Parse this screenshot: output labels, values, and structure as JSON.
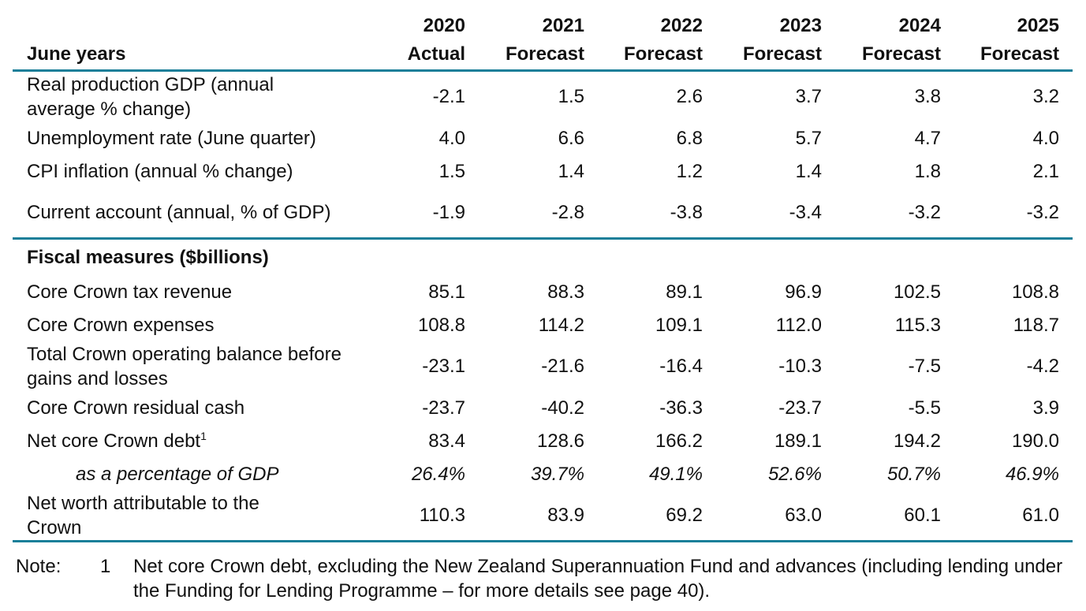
{
  "header": {
    "row_label": "June years",
    "columns": [
      {
        "year": "2020",
        "type": "Actual"
      },
      {
        "year": "2021",
        "type": "Forecast"
      },
      {
        "year": "2022",
        "type": "Forecast"
      },
      {
        "year": "2023",
        "type": "Forecast"
      },
      {
        "year": "2024",
        "type": "Forecast"
      },
      {
        "year": "2025",
        "type": "Forecast"
      }
    ]
  },
  "economic_rows": [
    {
      "label": "Real production GDP (annual average % change)",
      "values": [
        "-2.1",
        "1.5",
        "2.6",
        "3.7",
        "3.8",
        "3.2"
      ],
      "tall": true
    },
    {
      "label": "Unemployment rate (June quarter)",
      "values": [
        "4.0",
        "6.6",
        "6.8",
        "5.7",
        "4.7",
        "4.0"
      ]
    },
    {
      "label": "CPI inflation (annual % change)",
      "values": [
        "1.5",
        "1.4",
        "1.2",
        "1.4",
        "1.8",
        "2.1"
      ]
    },
    {
      "label": "Current account (annual, % of GDP)",
      "values": [
        "-1.9",
        "-2.8",
        "-3.8",
        "-3.4",
        "-3.2",
        "-3.2"
      ],
      "tall": true
    }
  ],
  "fiscal_section": "Fiscal measures ($billions)",
  "fiscal_rows": [
    {
      "label": "Core Crown tax revenue",
      "values": [
        "85.1",
        "88.3",
        "89.1",
        "96.9",
        "102.5",
        "108.8"
      ]
    },
    {
      "label": "Core Crown expenses",
      "values": [
        "108.8",
        "114.2",
        "109.1",
        "112.0",
        "115.3",
        "118.7"
      ]
    },
    {
      "label": "Total Crown operating balance before gains and losses",
      "values": [
        "-23.1",
        "-21.6",
        "-16.4",
        "-10.3",
        "-7.5",
        "-4.2"
      ],
      "tall": true
    },
    {
      "label": "Core Crown residual cash",
      "values": [
        "-23.7",
        "-40.2",
        "-36.3",
        "-23.7",
        "-5.5",
        "3.9"
      ]
    },
    {
      "label": "Net core Crown debt",
      "sup": "1",
      "values": [
        "83.4",
        "128.6",
        "166.2",
        "189.1",
        "194.2",
        "190.0"
      ]
    },
    {
      "label": "as a percentage of GDP",
      "values": [
        "26.4%",
        "39.7%",
        "49.1%",
        "52.6%",
        "50.7%",
        "46.9%"
      ],
      "italic": true
    },
    {
      "label": "Net worth attributable to the Crown",
      "values": [
        "110.3",
        "83.9",
        "69.2",
        "63.0",
        "60.1",
        "61.0"
      ],
      "tall": true,
      "narrow": true
    }
  ],
  "note": {
    "label": "Note:",
    "number": "1",
    "text": "Net core Crown debt, excluding the New Zealand Superannuation Fund and advances (including lending under the Funding for Lending Programme – for more details see page 40)."
  },
  "colors": {
    "rule": "#1a7f99"
  }
}
